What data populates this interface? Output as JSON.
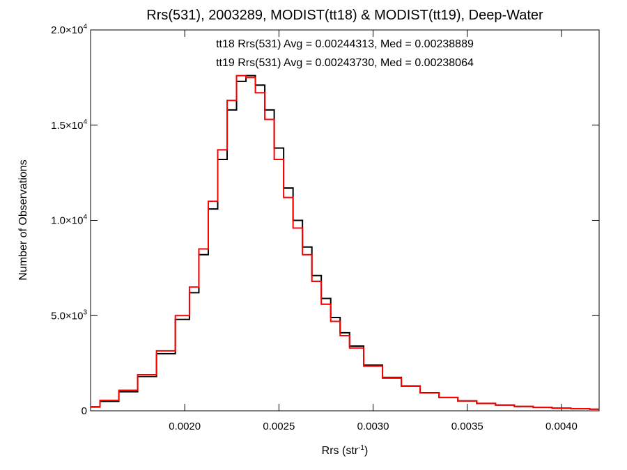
{
  "chart_data": {
    "type": "line",
    "title": "Rrs(531), 2003289, MODIST(tt18) & MODIST(tt19), Deep-Water",
    "xlabel": {
      "base": "Rrs (str",
      "sup": "-1",
      "close": ")"
    },
    "ylabel": "Number of Observations",
    "xlim": [
      0.0015,
      0.0042
    ],
    "ylim": [
      0,
      20000
    ],
    "grid": false,
    "x_ticks": [
      {
        "value": 0.002,
        "label": "0.0020"
      },
      {
        "value": 0.0025,
        "label": "0.0025"
      },
      {
        "value": 0.003,
        "label": "0.0030"
      },
      {
        "value": 0.0035,
        "label": "0.0035"
      },
      {
        "value": 0.004,
        "label": "0.0040"
      }
    ],
    "y_ticks": [
      {
        "value": 0,
        "mant": "0",
        "exp": ""
      },
      {
        "value": 5000,
        "mant": "5.0×10",
        "exp": "3"
      },
      {
        "value": 10000,
        "mant": "1.0×10",
        "exp": "4"
      },
      {
        "value": 15000,
        "mant": "1.5×10",
        "exp": "4"
      },
      {
        "value": 20000,
        "mant": "2.0×10",
        "exp": "4"
      }
    ],
    "annotations": [
      {
        "text": "tt18 Rrs(531) Avg = 0.00244313, Med = 0.00238889",
        "color": "#000000"
      },
      {
        "text": "tt19 Rrs(531) Avg = 0.00243730, Med = 0.00238064",
        "color": "#ff0000"
      }
    ],
    "series": [
      {
        "color": "#000000",
        "x": [
          0.0015,
          0.0016,
          0.0017,
          0.0018,
          0.0019,
          0.002,
          0.00205,
          0.0021,
          0.00215,
          0.0022,
          0.00225,
          0.0023,
          0.00235,
          0.0024,
          0.00245,
          0.0025,
          0.00255,
          0.0026,
          0.00265,
          0.0027,
          0.00275,
          0.0028,
          0.00285,
          0.0029,
          0.003,
          0.0031,
          0.0032,
          0.0033,
          0.0034,
          0.0035,
          0.0036,
          0.0037,
          0.0038,
          0.0039,
          0.004,
          0.0041,
          0.0042
        ],
        "y": [
          200,
          500,
          1000,
          1800,
          3000,
          4800,
          6200,
          8200,
          10600,
          13200,
          15800,
          17300,
          17600,
          17100,
          15800,
          13800,
          11700,
          10000,
          8600,
          7100,
          5900,
          4900,
          4100,
          3400,
          2400,
          1750,
          1300,
          950,
          700,
          520,
          390,
          300,
          230,
          180,
          140,
          110,
          80
        ]
      },
      {
        "color": "#ff0000",
        "x": [
          0.0015,
          0.0016,
          0.0017,
          0.0018,
          0.0019,
          0.002,
          0.00205,
          0.0021,
          0.00215,
          0.0022,
          0.00225,
          0.0023,
          0.00235,
          0.0024,
          0.00245,
          0.0025,
          0.00255,
          0.0026,
          0.00265,
          0.0027,
          0.00275,
          0.0028,
          0.00285,
          0.0029,
          0.003,
          0.0031,
          0.0032,
          0.0033,
          0.0034,
          0.0035,
          0.0036,
          0.0037,
          0.0038,
          0.0039,
          0.004,
          0.0041,
          0.0042
        ],
        "y": [
          220,
          550,
          1080,
          1900,
          3150,
          5000,
          6500,
          8500,
          11000,
          13700,
          16300,
          17600,
          17500,
          16700,
          15300,
          13200,
          11200,
          9600,
          8200,
          6800,
          5600,
          4700,
          3950,
          3300,
          2350,
          1720,
          1280,
          940,
          700,
          520,
          390,
          300,
          230,
          180,
          140,
          110,
          80
        ]
      }
    ]
  }
}
